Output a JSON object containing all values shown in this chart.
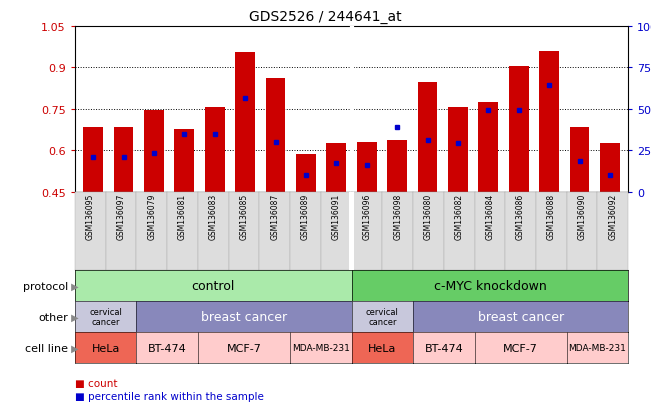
{
  "title": "GDS2526 / 244641_at",
  "samples": [
    "GSM136095",
    "GSM136097",
    "GSM136079",
    "GSM136081",
    "GSM136083",
    "GSM136085",
    "GSM136087",
    "GSM136089",
    "GSM136091",
    "GSM136096",
    "GSM136098",
    "GSM136080",
    "GSM136082",
    "GSM136084",
    "GSM136086",
    "GSM136088",
    "GSM136090",
    "GSM136092"
  ],
  "bar_values": [
    0.685,
    0.685,
    0.745,
    0.675,
    0.755,
    0.955,
    0.86,
    0.585,
    0.625,
    0.63,
    0.635,
    0.845,
    0.755,
    0.775,
    0.905,
    0.96,
    0.685,
    0.625
  ],
  "blue_values": [
    0.575,
    0.575,
    0.59,
    0.66,
    0.66,
    0.79,
    0.63,
    0.51,
    0.555,
    0.545,
    0.685,
    0.635,
    0.625,
    0.745,
    0.745,
    0.835,
    0.56,
    0.51
  ],
  "ylim": [
    0.45,
    1.05
  ],
  "yticks": [
    0.45,
    0.6,
    0.75,
    0.9,
    1.05
  ],
  "ytick_labels": [
    "0.45",
    "0.6",
    "0.75",
    "0.9",
    "1.05"
  ],
  "right_ytick_labels": [
    "0",
    "25",
    "50",
    "75",
    "100%"
  ],
  "bar_color": "#cc0000",
  "blue_color": "#0000cc",
  "protocol_light_green": "#aaeaaa",
  "protocol_dark_green": "#66cc66",
  "cervical_color": "#c8c8dc",
  "breast_color": "#8888bb",
  "hela_color": "#ee6655",
  "other_cell_color": "#ffcccc",
  "xtick_bg": "#dddddd",
  "background_color": "#ffffff",
  "label_color": "#555555"
}
